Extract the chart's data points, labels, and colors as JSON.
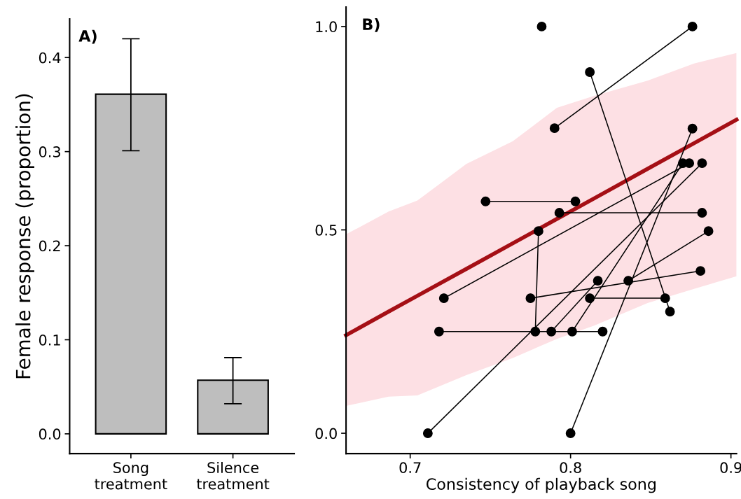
{
  "chart_data": [
    {
      "type": "bar",
      "annotations": [
        "A)"
      ],
      "ylabel": "Female response (proportion)",
      "categories": [
        "Song\ntreatment",
        "Silence\ntreatment"
      ],
      "values": [
        0.361,
        0.057
      ],
      "errors": [
        [
          0.301,
          0.42
        ],
        [
          0.032,
          0.081
        ]
      ],
      "color": "#bebebe",
      "ylim": [
        -0.021,
        0.441
      ],
      "yticks": [
        {
          "value": 0,
          "label": "0.0"
        },
        {
          "value": 0.1,
          "label": "0.1"
        },
        {
          "value": 0.2,
          "label": "0.2"
        },
        {
          "value": 0.3,
          "label": "0.3"
        },
        {
          "value": 0.4,
          "label": "0.4"
        }
      ],
      "grid": false,
      "legend": false
    },
    {
      "type": "line",
      "annotations": [
        "B)"
      ],
      "xlabel": "Consistency of playback song",
      "xlim": [
        0.66,
        0.9035
      ],
      "ylim": [
        -0.05,
        1.048
      ],
      "xticks": [
        0.7,
        0.8,
        0.9
      ],
      "yticks": [
        {
          "value": 0,
          "label": "0.0"
        },
        0.5,
        {
          "value": 1,
          "label": "1.0"
        }
      ],
      "grid": false,
      "legend": false,
      "marker": "circle",
      "series": [
        {
          "type": "line",
          "color": "#a50f15",
          "marker": "none",
          "x": [
            0.66,
            0.6865,
            0.7045,
            0.735,
            0.764,
            0.7915,
            0.815,
            0.848,
            0.877,
            0.9035
          ],
          "values": [
            0.241,
            0.299,
            0.338,
            0.404,
            0.467,
            0.527,
            0.578,
            0.65,
            0.713,
            0.771
          ],
          "lower": [
            0.067,
            0.09,
            0.093,
            0.143,
            0.185,
            0.232,
            0.265,
            0.32,
            0.355,
            0.386
          ],
          "upper": [
            0.489,
            0.545,
            0.572,
            0.662,
            0.718,
            0.8,
            0.83,
            0.867,
            0.909,
            0.935
          ]
        },
        {
          "type": "scatter",
          "color": "#000000",
          "x": [
            0.782
          ],
          "values": [
            1.0
          ]
        },
        {
          "color": "#000000",
          "x": [
            0.876,
            0.79
          ],
          "values": [
            1.0,
            0.75
          ]
        },
        {
          "color": "#000000",
          "x": [
            0.812,
            0.862
          ],
          "values": [
            0.888,
            0.299
          ]
        },
        {
          "color": "#000000",
          "x": [
            0.812,
            0.859
          ],
          "values": [
            0.332,
            0.332
          ]
        },
        {
          "color": "#000000",
          "x": [
            0.747,
            0.803
          ],
          "values": [
            0.57,
            0.57
          ]
        },
        {
          "color": "#000000",
          "x": [
            0.793,
            0.882
          ],
          "values": [
            0.542,
            0.542
          ]
        },
        {
          "color": "#000000",
          "x": [
            0.78,
            0.778
          ],
          "values": [
            0.497,
            0.25
          ]
        },
        {
          "color": "#000000",
          "x": [
            0.718,
            0.82
          ],
          "values": [
            0.25,
            0.25
          ]
        },
        {
          "color": "#000000",
          "x": [
            0.711,
            0.882
          ],
          "values": [
            0.0,
            0.664
          ]
        },
        {
          "color": "#000000",
          "x": [
            0.721,
            0.874
          ],
          "values": [
            0.332,
            0.664
          ]
        },
        {
          "color": "#000000",
          "x": [
            0.801,
            0.87
          ],
          "values": [
            0.25,
            0.664
          ]
        },
        {
          "color": "#000000",
          "x": [
            0.8,
            0.876
          ],
          "values": [
            0.0,
            0.749
          ]
        },
        {
          "color": "#000000",
          "x": [
            0.788,
            0.817
          ],
          "values": [
            0.25,
            0.375
          ]
        },
        {
          "color": "#000000",
          "x": [
            0.836,
            0.886
          ],
          "values": [
            0.375,
            0.497
          ]
        },
        {
          "color": "#000000",
          "x": [
            0.775,
            0.881
          ],
          "values": [
            0.332,
            0.399
          ]
        }
      ]
    }
  ]
}
